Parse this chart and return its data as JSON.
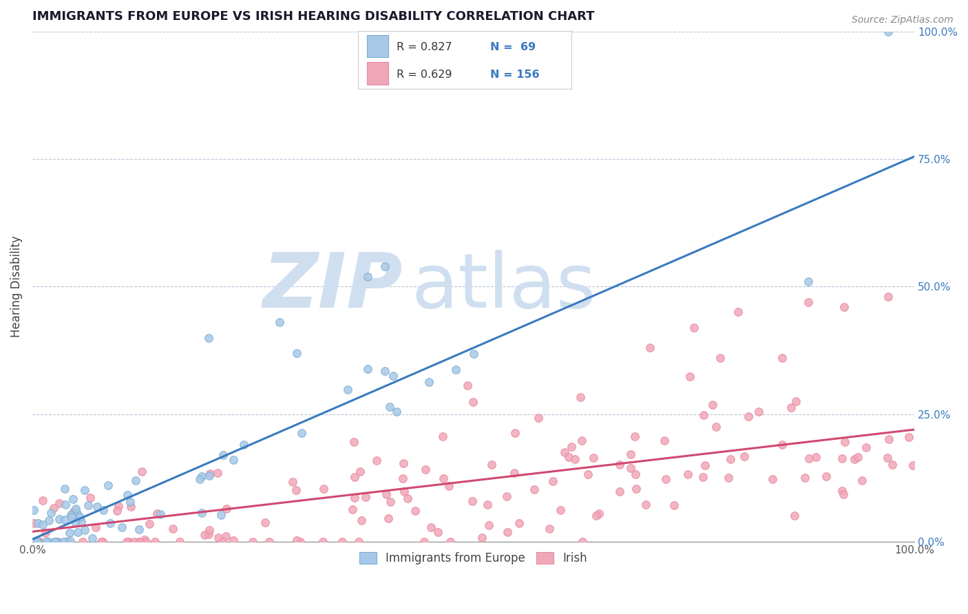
{
  "title": "IMMIGRANTS FROM EUROPE VS IRISH HEARING DISABILITY CORRELATION CHART",
  "source": "Source: ZipAtlas.com",
  "ylabel": "Hearing Disability",
  "xlim": [
    0,
    100
  ],
  "ylim": [
    0,
    100
  ],
  "legend_labels": [
    "Immigrants from Europe",
    "Irish"
  ],
  "blue_color": "#a8c8e8",
  "pink_color": "#f0a8b8",
  "blue_edge_color": "#7aaed0",
  "pink_edge_color": "#e888a0",
  "blue_line_color": "#3a7abf",
  "pink_line_color": "#d04870",
  "stat_color": "#3a7abf",
  "watermark_color": "#d0dff0",
  "background_color": "#ffffff",
  "grid_color": "#b8c8d8",
  "title_color": "#1a1a2e",
  "blue_r": "R = 0.827",
  "blue_n": "N =  69",
  "pink_r": "R = 0.629",
  "pink_n": "N = 156",
  "blue_line_end_y": 75,
  "pink_line_end_y": 22,
  "ytick_positions": [
    0,
    25,
    50,
    75,
    100
  ],
  "ytick_labels": [
    "0.0%",
    "25.0%",
    "50.0%",
    "75.0%",
    "100.0%"
  ]
}
